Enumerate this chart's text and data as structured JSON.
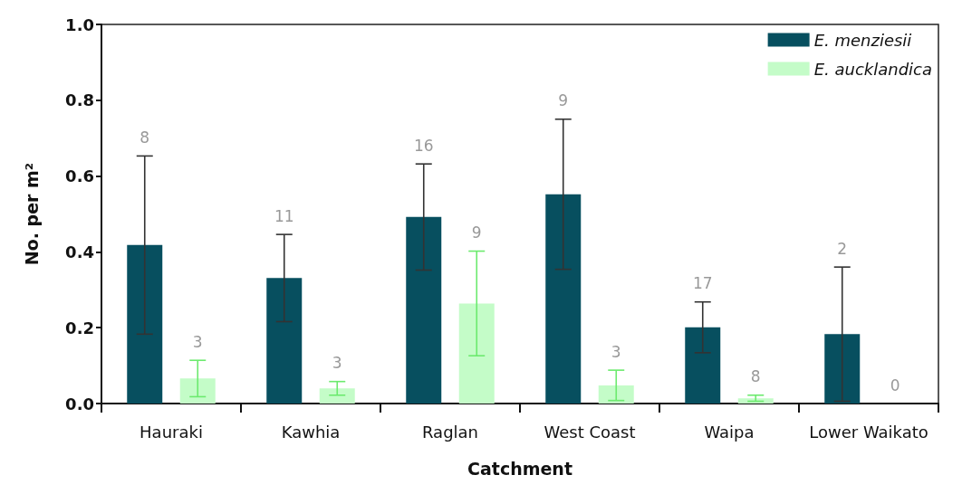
{
  "chart_data": {
    "type": "bar",
    "xlabel": "Catchment",
    "ylabel": "No. per m²",
    "categories": [
      "Hauraki",
      "Kawhia",
      "Raglan",
      "West Coast",
      "Waipa",
      "Lower Waikato"
    ],
    "series": [
      {
        "name": "E. menziesii",
        "color": "#074f5f",
        "values": [
          0.418,
          0.331,
          0.492,
          0.552,
          0.201,
          0.183
        ],
        "errors": [
          0.235,
          0.115,
          0.14,
          0.198,
          0.067,
          0.177
        ]
      },
      {
        "name": "E. aucklandica",
        "color": "#c4fcc8",
        "values": [
          0.066,
          0.04,
          0.264,
          0.048,
          0.014,
          0
        ],
        "errors": [
          0.048,
          0.018,
          0.138,
          0.04,
          0.008,
          null
        ]
      }
    ],
    "annotations": [
      "8",
      "3",
      "11",
      "3",
      "16",
      "9",
      "9",
      "3",
      "17",
      "8",
      "2",
      "0"
    ],
    "ylim": [
      0,
      1
    ],
    "yticks": [
      {
        "value": 0,
        "label": "0.0"
      },
      {
        "value": 0.2,
        "label": "0.2"
      },
      {
        "value": 0.4,
        "label": "0.4"
      },
      {
        "value": 0.6,
        "label": "0.6"
      },
      {
        "value": 0.8,
        "label": "0.8"
      },
      {
        "value": 1,
        "label": "1.0"
      }
    ],
    "grid": false,
    "legend": "top right"
  }
}
